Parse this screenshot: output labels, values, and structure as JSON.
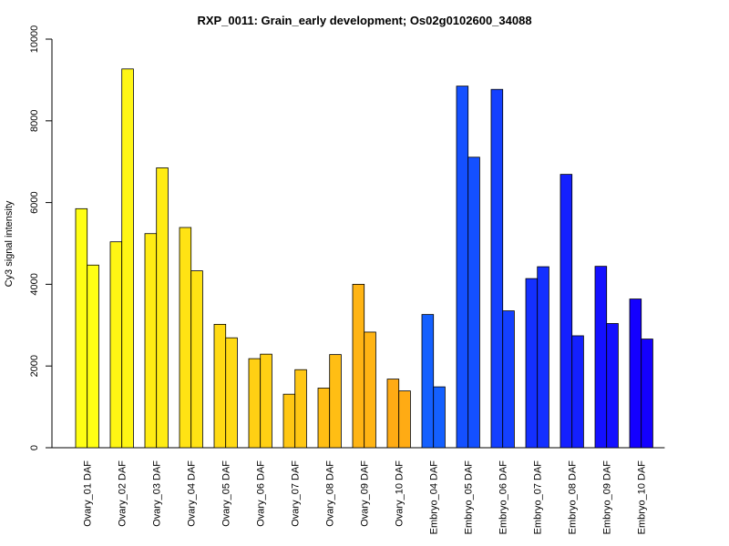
{
  "chart_data": {
    "type": "bar",
    "title": "RXP_0011: Grain_early development; Os02g0102600_34088",
    "xlabel": "",
    "ylabel": "Cy3 signal intensity",
    "ylim": [
      0,
      10000
    ],
    "yticks": [
      "0",
      "2000",
      "4000",
      "6000",
      "8000",
      "10000"
    ],
    "grid": false,
    "categories": [
      "Ovary_01 DAF",
      "Ovary_02 DAF",
      "Ovary_03 DAF",
      "Ovary_04 DAF",
      "Ovary_05 DAF",
      "Ovary_06 DAF",
      "Ovary_07 DAF",
      "Ovary_08 DAF",
      "Ovary_09 DAF",
      "Ovary_10 DAF",
      "Embryo_04 DAF",
      "Embryo_05 DAF",
      "Embryo_06 DAF",
      "Embryo_07 DAF",
      "Embryo_08 DAF",
      "Embryo_09 DAF",
      "Embryo_10 DAF"
    ],
    "series": [
      {
        "values": [
          5850,
          5040,
          5240,
          5390,
          3020,
          2180,
          1310,
          1460,
          4000,
          1680,
          3260,
          8850,
          8770,
          4140,
          6690,
          4440,
          3640
        ]
      },
      {
        "values": [
          4470,
          9270,
          6850,
          4330,
          2690,
          2290,
          1910,
          2280,
          2830,
          1390,
          1490,
          7110,
          3350,
          4430,
          2740,
          3040,
          2660
        ]
      }
    ],
    "category_colors": [
      "#FFFF14",
      "#FFF614",
      "#FFEC14",
      "#FFE314",
      "#FFDA14",
      "#FFD014",
      "#FFC714",
      "#FFBE14",
      "#FFB414",
      "#FFAB14",
      "#1460FF",
      "#1450FF",
      "#1440FF",
      "#1430FF",
      "#1420FF",
      "#1410FF",
      "#1400FF"
    ]
  }
}
